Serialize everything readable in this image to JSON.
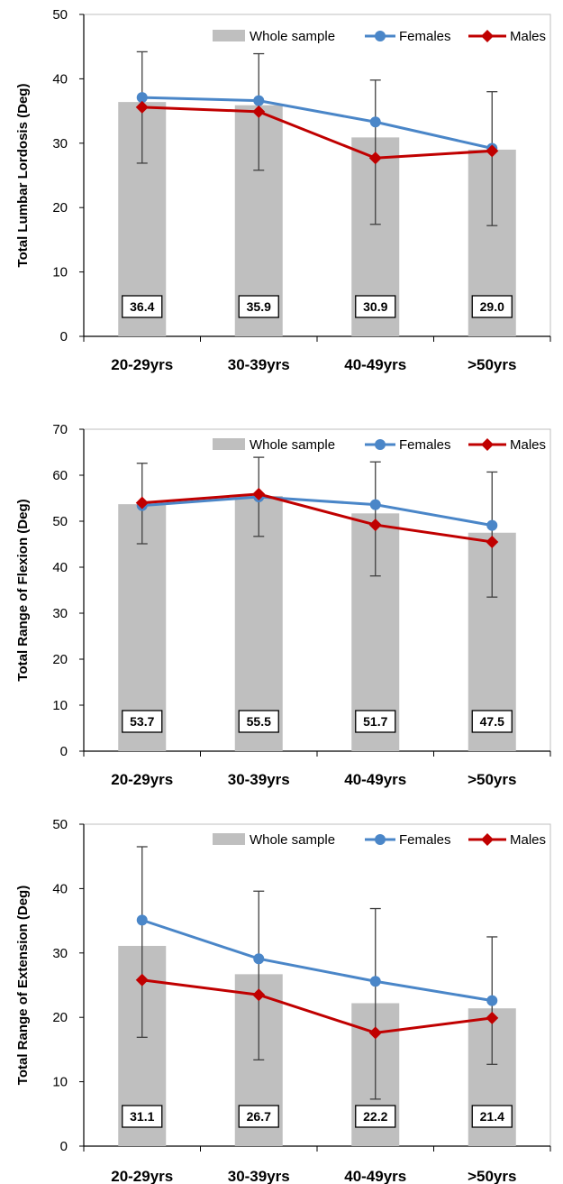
{
  "colors": {
    "whole_sample": "#bfbfbf",
    "females": "#4a86c8",
    "males": "#c00000",
    "error_bar": "#404040",
    "axis": "#000000"
  },
  "chart_data": [
    {
      "type": "bar",
      "ylabel": "Total Lumbar Lordosis (Deg)",
      "ylim": [
        0,
        50
      ],
      "yticks": [
        0,
        10,
        20,
        30,
        40,
        50
      ],
      "categories": [
        "20-29yrs",
        "30-39yrs",
        "40-49yrs",
        ">50yrs"
      ],
      "legend": [
        "Whole sample",
        "Females",
        "Males"
      ],
      "legend_position": "top",
      "series": [
        {
          "name": "Whole sample",
          "kind": "bar",
          "values": [
            36.4,
            35.9,
            30.9,
            29.0
          ],
          "labels": [
            "36.4",
            "35.9",
            "30.9",
            "29.0"
          ]
        },
        {
          "name": "Females",
          "kind": "line",
          "values": [
            37.1,
            36.6,
            33.3,
            29.2
          ]
        },
        {
          "name": "Males",
          "kind": "line",
          "values": [
            35.6,
            34.9,
            27.7,
            28.8
          ]
        }
      ],
      "error_bars": [
        {
          "center": 35.6,
          "low": 26.9,
          "high": 44.2
        },
        {
          "center": 34.9,
          "low": 25.8,
          "high": 43.9
        },
        {
          "center": 28.6,
          "low": 17.4,
          "high": 39.8
        },
        {
          "center": 27.6,
          "low": 17.2,
          "high": 38.0
        }
      ]
    },
    {
      "type": "bar",
      "ylabel": "Total Range of Flexion (Deg)",
      "ylim": [
        0,
        70
      ],
      "yticks": [
        0,
        10,
        20,
        30,
        40,
        50,
        60,
        70
      ],
      "categories": [
        "20-29yrs",
        "30-39yrs",
        "40-49yrs",
        ">50yrs"
      ],
      "legend": [
        "Whole sample",
        "Females",
        "Males"
      ],
      "legend_position": "top",
      "series": [
        {
          "name": "Whole sample",
          "kind": "bar",
          "values": [
            53.7,
            55.5,
            51.7,
            47.5
          ],
          "labels": [
            "53.7",
            "55.5",
            "51.7",
            "47.5"
          ]
        },
        {
          "name": "Females",
          "kind": "line",
          "values": [
            53.4,
            55.3,
            53.6,
            49.1
          ]
        },
        {
          "name": "Males",
          "kind": "line",
          "values": [
            54.0,
            55.9,
            49.2,
            45.5
          ]
        }
      ],
      "error_bars": [
        {
          "center": 53.8,
          "low": 45.1,
          "high": 62.6
        },
        {
          "center": 55.3,
          "low": 46.7,
          "high": 63.9
        },
        {
          "center": 50.5,
          "low": 38.1,
          "high": 62.9
        },
        {
          "center": 47.1,
          "low": 33.5,
          "high": 60.7
        }
      ]
    },
    {
      "type": "bar",
      "ylabel": "Total Range of Extension (Deg)",
      "ylim": [
        0,
        50
      ],
      "yticks": [
        0,
        10,
        20,
        30,
        40,
        50
      ],
      "categories": [
        "20-29yrs",
        "30-39yrs",
        "40-49yrs",
        ">50yrs"
      ],
      "legend": [
        "Whole sample",
        "Females",
        "Males"
      ],
      "legend_position": "top",
      "series": [
        {
          "name": "Whole sample",
          "kind": "bar",
          "values": [
            31.1,
            26.7,
            22.2,
            21.4
          ],
          "labels": [
            "31.1",
            "26.7",
            "22.2",
            "21.4"
          ]
        },
        {
          "name": "Females",
          "kind": "line",
          "values": [
            35.1,
            29.1,
            25.6,
            22.6
          ]
        },
        {
          "name": "Males",
          "kind": "line",
          "values": [
            25.8,
            23.5,
            17.6,
            19.9
          ]
        }
      ],
      "error_bars": [
        {
          "center": 31.7,
          "low": 16.9,
          "high": 46.5
        },
        {
          "center": 26.5,
          "low": 13.4,
          "high": 39.6
        },
        {
          "center": 22.1,
          "low": 7.3,
          "high": 36.9
        },
        {
          "center": 22.6,
          "low": 12.7,
          "high": 32.5
        }
      ]
    }
  ]
}
